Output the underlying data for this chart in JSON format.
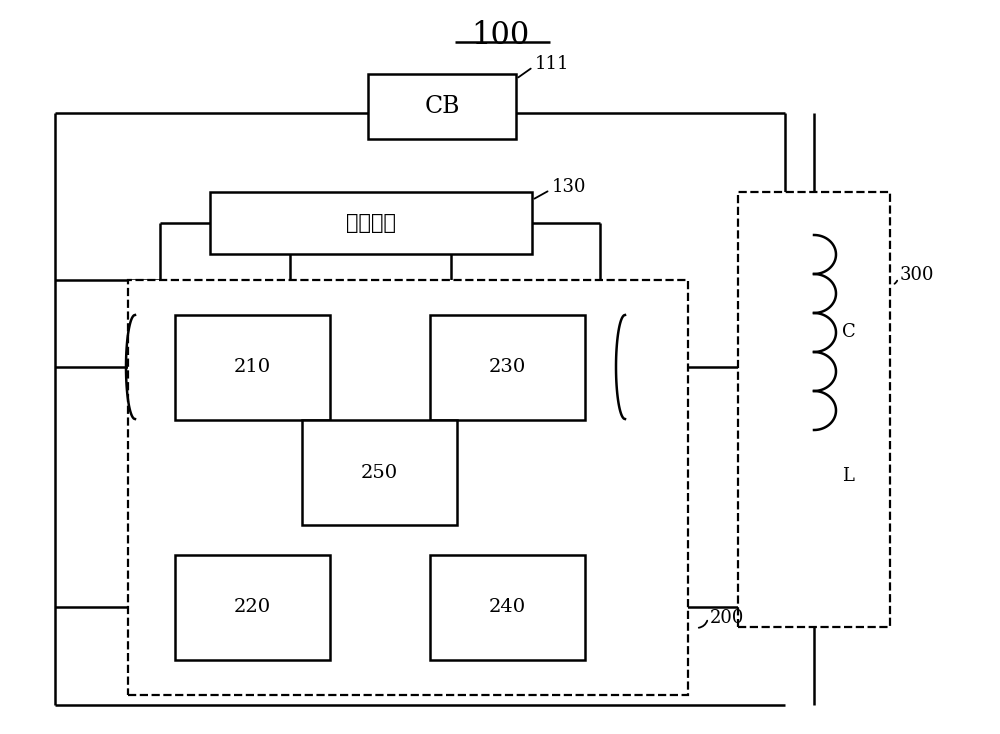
{
  "title": "100",
  "bg": "#ffffff",
  "lc": "#000000",
  "lw": 1.8,
  "dlw": 1.6,
  "figsize": [
    10.0,
    7.34
  ],
  "dpi": 100,
  "cb_label": "CB",
  "ctrl_label": "控制单元",
  "labels_210": "210",
  "labels_220": "220",
  "labels_230": "230",
  "labels_240": "240",
  "labels_250": "250",
  "ref_111": "111",
  "ref_130": "130",
  "ref_200": "200",
  "ref_300": "300",
  "comp_C": "C",
  "comp_L": "L"
}
